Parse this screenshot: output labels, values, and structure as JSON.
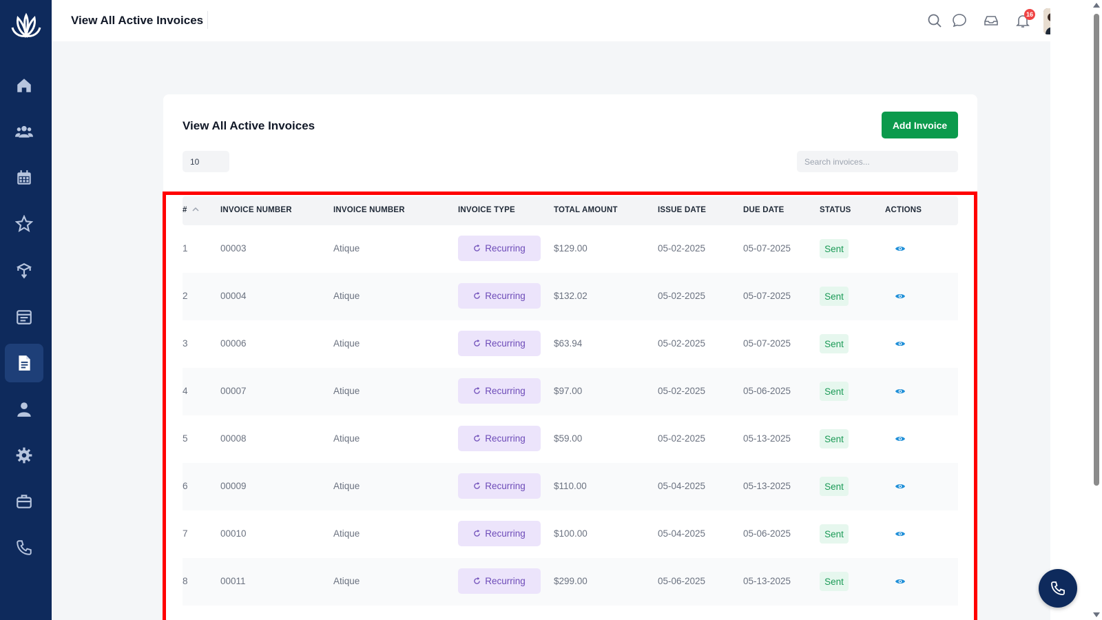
{
  "header": {
    "title": "View All Active Invoices",
    "notification_count": "16"
  },
  "sidebar": {
    "items": [
      {
        "icon": "home-icon"
      },
      {
        "icon": "users-icon"
      },
      {
        "icon": "calendar-icon"
      },
      {
        "icon": "star-icon"
      },
      {
        "icon": "box-icon"
      },
      {
        "icon": "schedule-icon"
      },
      {
        "icon": "invoice-icon",
        "active": true
      },
      {
        "icon": "user-icon"
      },
      {
        "icon": "gear-icon"
      },
      {
        "icon": "briefcase-icon"
      },
      {
        "icon": "phone-icon"
      }
    ]
  },
  "card": {
    "title": "View All Active Invoices",
    "add_button": "Add Invoice",
    "page_size": "10",
    "search_placeholder": "Search invoices..."
  },
  "table": {
    "columns": [
      "#",
      "INVOICE NUMBER",
      "INVOICE NUMBER",
      "INVOICE TYPE",
      "TOTAL AMOUNT",
      "ISSUE DATE",
      "DUE DATE",
      "STATUS",
      "ACTIONS"
    ],
    "rows": [
      {
        "idx": "1",
        "number": "00003",
        "client": "Atique",
        "type": "Recurring",
        "amount": "$129.00",
        "issue": "05-02-2025",
        "due": "05-07-2025",
        "status": "Sent"
      },
      {
        "idx": "2",
        "number": "00004",
        "client": "Atique",
        "type": "Recurring",
        "amount": "$132.02",
        "issue": "05-02-2025",
        "due": "05-07-2025",
        "status": "Sent"
      },
      {
        "idx": "3",
        "number": "00006",
        "client": "Atique",
        "type": "Recurring",
        "amount": "$63.94",
        "issue": "05-02-2025",
        "due": "05-07-2025",
        "status": "Sent"
      },
      {
        "idx": "4",
        "number": "00007",
        "client": "Atique",
        "type": "Recurring",
        "amount": "$97.00",
        "issue": "05-02-2025",
        "due": "05-06-2025",
        "status": "Sent"
      },
      {
        "idx": "5",
        "number": "00008",
        "client": "Atique",
        "type": "Recurring",
        "amount": "$59.00",
        "issue": "05-02-2025",
        "due": "05-13-2025",
        "status": "Sent"
      },
      {
        "idx": "6",
        "number": "00009",
        "client": "Atique",
        "type": "Recurring",
        "amount": "$110.00",
        "issue": "05-04-2025",
        "due": "05-13-2025",
        "status": "Sent"
      },
      {
        "idx": "7",
        "number": "00010",
        "client": "Atique",
        "type": "Recurring",
        "amount": "$100.00",
        "issue": "05-04-2025",
        "due": "05-06-2025",
        "status": "Sent"
      },
      {
        "idx": "8",
        "number": "00011",
        "client": "Atique",
        "type": "Recurring",
        "amount": "$299.00",
        "issue": "05-06-2025",
        "due": "05-13-2025",
        "status": "Sent"
      }
    ]
  },
  "colors": {
    "sidebar": "#0e2a5c",
    "primary_button": "#0b9a4c",
    "highlight": "#ff0000",
    "type_pill": "#ece4fb",
    "status_pill": "#e6f7ee"
  }
}
